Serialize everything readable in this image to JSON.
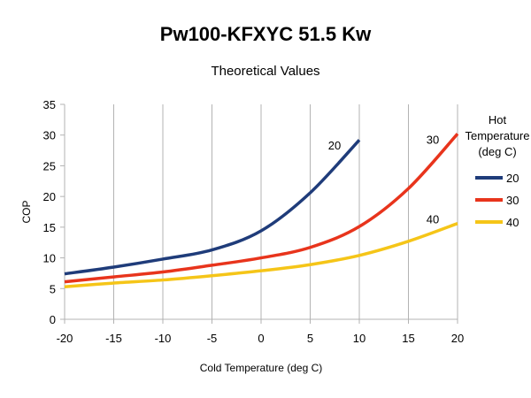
{
  "title": "Pw100-KFXYC 51.5 Kw",
  "subtitle": "Theoretical Values",
  "chart_data": {
    "type": "line",
    "xlabel": "Cold Temperature (deg C)",
    "ylabel": "COP",
    "xlim": [
      -20,
      20
    ],
    "ylim": [
      0,
      35
    ],
    "xticks": [
      "-20",
      "-15",
      "-10",
      "-5",
      "0",
      "5",
      "10",
      "15",
      "20"
    ],
    "yticks": [
      "0",
      "5",
      "10",
      "15",
      "20",
      "25",
      "30",
      "35"
    ],
    "grid": "vertical",
    "legend": {
      "title": [
        "Hot",
        "Temperature",
        "(deg C)"
      ],
      "placement": "right"
    },
    "series": [
      {
        "name": "20",
        "color": "#1f3c7a",
        "annotation": "20",
        "points": [
          [
            -20,
            7.4
          ],
          [
            -15,
            8.5
          ],
          [
            -10,
            9.8
          ],
          [
            -5,
            11.3
          ],
          [
            0,
            14.4
          ],
          [
            5,
            20.6
          ],
          [
            10,
            29.2
          ]
        ]
      },
      {
        "name": "30",
        "color": "#e8341c",
        "annotation": "30",
        "points": [
          [
            -20,
            6.1
          ],
          [
            -15,
            6.9
          ],
          [
            -10,
            7.7
          ],
          [
            -5,
            8.8
          ],
          [
            0,
            10.0
          ],
          [
            5,
            11.7
          ],
          [
            10,
            15.1
          ],
          [
            15,
            21.3
          ],
          [
            20,
            30.2
          ]
        ]
      },
      {
        "name": "40",
        "color": "#f5c518",
        "annotation": "40",
        "points": [
          [
            -20,
            5.3
          ],
          [
            -15,
            5.9
          ],
          [
            -10,
            6.4
          ],
          [
            -5,
            7.1
          ],
          [
            0,
            7.9
          ],
          [
            5,
            8.9
          ],
          [
            10,
            10.4
          ],
          [
            15,
            12.7
          ],
          [
            20,
            15.6
          ]
        ]
      }
    ]
  }
}
